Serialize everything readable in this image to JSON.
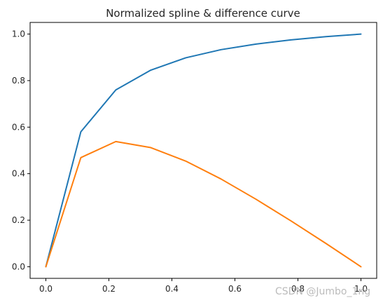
{
  "chart_data": {
    "type": "line",
    "title": "Normalized spline & difference curve",
    "xlabel": "",
    "ylabel": "",
    "xlim": [
      -0.05,
      1.05
    ],
    "ylim": [
      -0.05,
      1.05
    ],
    "xticks": [
      0.0,
      0.2,
      0.4,
      0.6,
      0.8,
      1.0
    ],
    "yticks": [
      0.0,
      0.2,
      0.4,
      0.6,
      0.8,
      1.0
    ],
    "xtick_labels": [
      "0.0",
      "0.2",
      "0.4",
      "0.6",
      "0.8",
      "1.0"
    ],
    "ytick_labels": [
      "0.0",
      "0.2",
      "0.4",
      "0.6",
      "0.8",
      "1.0"
    ],
    "grid": false,
    "legend": "none",
    "x": [
      0.0,
      0.111,
      0.222,
      0.333,
      0.444,
      0.556,
      0.667,
      0.778,
      0.889,
      1.0
    ],
    "series": [
      {
        "color": "#1f77b4",
        "values": [
          0.0,
          0.58,
          0.76,
          0.845,
          0.898,
          0.933,
          0.957,
          0.975,
          0.989,
          1.0
        ]
      },
      {
        "color": "#ff7f0e",
        "values": [
          0.0,
          0.469,
          0.538,
          0.512,
          0.454,
          0.377,
          0.29,
          0.197,
          0.1,
          0.0
        ]
      }
    ]
  },
  "watermark": "CSDN @Jumbo_1ng"
}
